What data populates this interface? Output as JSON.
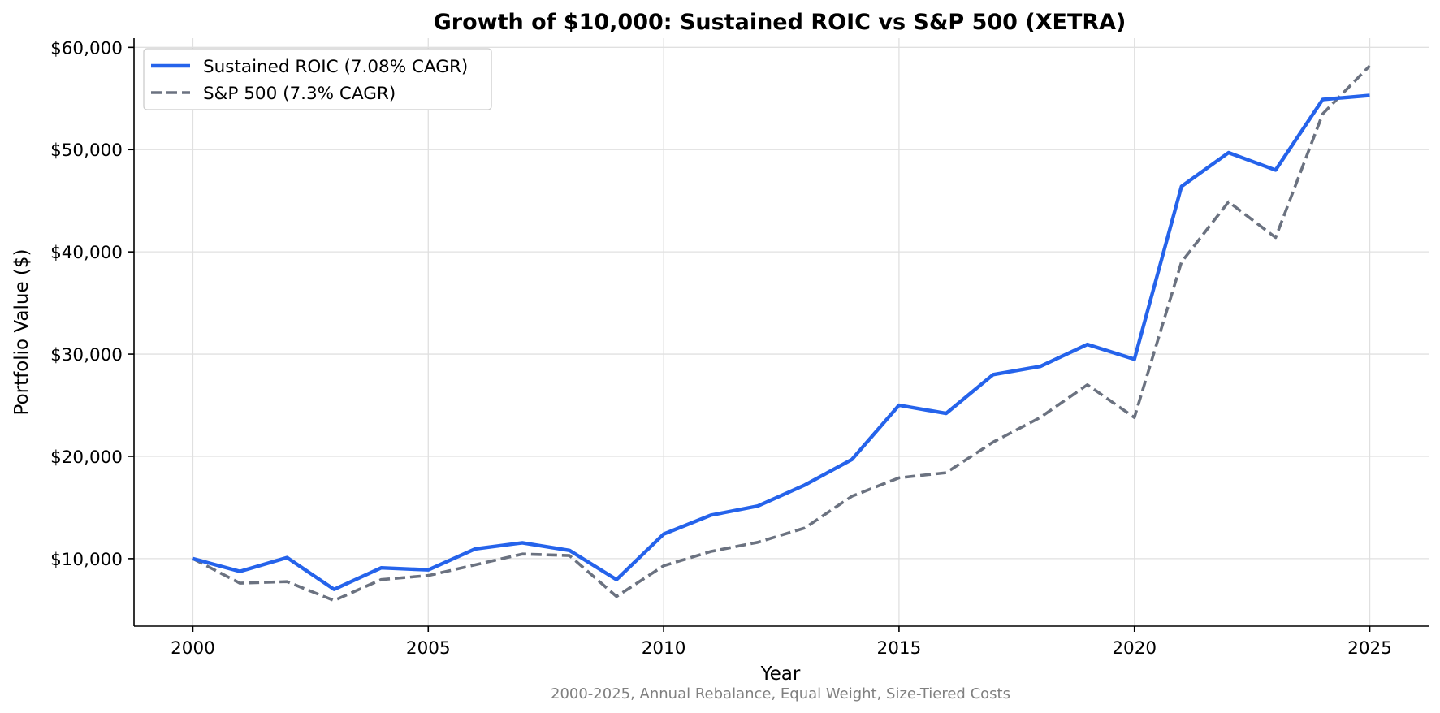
{
  "chart_data": {
    "type": "line",
    "title": "Growth of $10,000: Sustained ROIC vs S&P 500 (XETRA)",
    "subtitle": "2000-2025, Annual Rebalance, Equal Weight, Size-Tiered Costs",
    "xlabel": "Year",
    "ylabel": "Portfolio Value ($)",
    "x": [
      2000,
      2001,
      2002,
      2003,
      2004,
      2005,
      2006,
      2007,
      2008,
      2009,
      2010,
      2011,
      2012,
      2013,
      2014,
      2015,
      2016,
      2017,
      2018,
      2019,
      2020,
      2021,
      2022,
      2023,
      2024,
      2025
    ],
    "xlim": [
      1998.75,
      2026.25
    ],
    "ylim": [
      3400,
      60900
    ],
    "xticks": [
      2000,
      2005,
      2010,
      2015,
      2020,
      2025
    ],
    "xtick_labels": [
      "2000",
      "2005",
      "2010",
      "2015",
      "2020",
      "2025"
    ],
    "yticks": [
      10000,
      20000,
      30000,
      40000,
      50000,
      60000
    ],
    "ytick_labels": [
      "$10,000",
      "$20,000",
      "$30,000",
      "$40,000",
      "$50,000",
      "$60,000"
    ],
    "grid": true,
    "legend_position": "top-left",
    "series": [
      {
        "name": "Sustained ROIC (7.08% CAGR)",
        "color": "#2563eb",
        "style": "solid",
        "values": [
          10000,
          8750,
          10100,
          7000,
          9100,
          8900,
          10950,
          11550,
          10800,
          7950,
          12400,
          14250,
          15150,
          17200,
          19700,
          25000,
          24200,
          28000,
          28800,
          30950,
          29500,
          46400,
          49700,
          48000,
          54900,
          55300
        ]
      },
      {
        "name": "S&P 500 (7.3% CAGR)",
        "color": "#6b7280",
        "style": "dashed",
        "values": [
          10000,
          7600,
          7750,
          5900,
          7950,
          8350,
          9400,
          10450,
          10300,
          6300,
          9300,
          10700,
          11600,
          13000,
          16100,
          17900,
          18400,
          21400,
          23800,
          27000,
          23800,
          39000,
          44900,
          41400,
          53500,
          58200
        ]
      }
    ]
  }
}
